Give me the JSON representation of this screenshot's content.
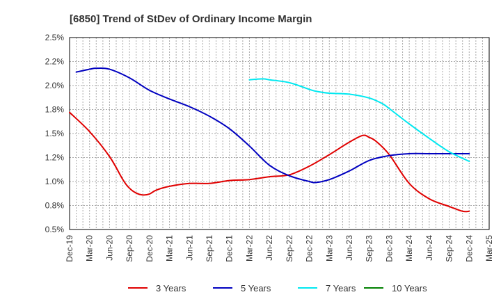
{
  "chart_data": {
    "type": "line",
    "title": "[6850]  Trend of StDev of Ordinary Income Margin",
    "xlabel": "",
    "ylabel": "",
    "ylim": [
      0.5,
      2.5
    ],
    "grid": true,
    "legend_position": "bottom",
    "y_ticks": [
      "0.5%",
      "0.8%",
      "1.0%",
      "1.2%",
      "1.5%",
      "1.8%",
      "2.0%",
      "2.2%",
      "2.5%"
    ],
    "x_ticks": [
      "Dec-19",
      "Mar-20",
      "Jun-20",
      "Sep-20",
      "Dec-20",
      "Mar-21",
      "Jun-21",
      "Sep-21",
      "Dec-21",
      "Mar-22",
      "Jun-22",
      "Sep-22",
      "Dec-22",
      "Mar-23",
      "Jun-23",
      "Sep-23",
      "Dec-23",
      "Mar-24",
      "Jun-24",
      "Sep-24",
      "Dec-24",
      "Mar-25"
    ],
    "series": [
      {
        "name": "3 Years",
        "color": "#e00000",
        "points": [
          [
            "Dec-19",
            1.72
          ],
          [
            "Mar-20",
            1.52
          ],
          [
            "Jun-20",
            1.26
          ],
          [
            "Aug-20",
            1.02
          ],
          [
            "Sep-20",
            0.93
          ],
          [
            "Oct-20",
            0.88
          ],
          [
            "Nov-20",
            0.86
          ],
          [
            "Dec-20",
            0.87
          ],
          [
            "Jan-21",
            0.91
          ],
          [
            "Mar-21",
            0.95
          ],
          [
            "Jun-21",
            0.98
          ],
          [
            "Sep-21",
            0.98
          ],
          [
            "Dec-21",
            1.01
          ],
          [
            "Mar-22",
            1.02
          ],
          [
            "Jun-22",
            1.05
          ],
          [
            "Sep-22",
            1.07
          ],
          [
            "Dec-22",
            1.16
          ],
          [
            "Mar-23",
            1.28
          ],
          [
            "Jun-23",
            1.41
          ],
          [
            "Aug-23",
            1.48
          ],
          [
            "Sep-23",
            1.46
          ],
          [
            "Oct-23",
            1.42
          ],
          [
            "Dec-23",
            1.28
          ],
          [
            "Mar-24",
            0.98
          ],
          [
            "Jun-24",
            0.82
          ],
          [
            "Sep-24",
            0.74
          ],
          [
            "Nov-24",
            0.69
          ],
          [
            "Dec-24",
            0.69
          ]
        ]
      },
      {
        "name": "5 Years",
        "color": "#0000c0",
        "points": [
          [
            "Jan-20",
            2.14
          ],
          [
            "Mar-20",
            2.17
          ],
          [
            "Apr-20",
            2.18
          ],
          [
            "Jun-20",
            2.17
          ],
          [
            "Sep-20",
            2.08
          ],
          [
            "Dec-20",
            1.95
          ],
          [
            "Mar-21",
            1.86
          ],
          [
            "Jun-21",
            1.78
          ],
          [
            "Sep-21",
            1.68
          ],
          [
            "Dec-21",
            1.55
          ],
          [
            "Mar-22",
            1.37
          ],
          [
            "Jun-22",
            1.17
          ],
          [
            "Sep-22",
            1.06
          ],
          [
            "Dec-22",
            1.0
          ],
          [
            "Jan-23",
            0.99
          ],
          [
            "Mar-23",
            1.02
          ],
          [
            "Jun-23",
            1.11
          ],
          [
            "Sep-23",
            1.22
          ],
          [
            "Dec-23",
            1.27
          ],
          [
            "Mar-24",
            1.29
          ],
          [
            "Jun-24",
            1.29
          ],
          [
            "Sep-24",
            1.29
          ],
          [
            "Dec-24",
            1.29
          ]
        ]
      },
      {
        "name": "7 Years",
        "color": "#00e8f0",
        "points": [
          [
            "Mar-22",
            2.06
          ],
          [
            "May-22",
            2.07
          ],
          [
            "Jun-22",
            2.06
          ],
          [
            "Sep-22",
            2.03
          ],
          [
            "Dec-22",
            1.96
          ],
          [
            "Jan-23",
            1.94
          ],
          [
            "Mar-23",
            1.92
          ],
          [
            "Jun-23",
            1.91
          ],
          [
            "Sep-23",
            1.87
          ],
          [
            "Nov-23",
            1.81
          ],
          [
            "Dec-23",
            1.76
          ],
          [
            "Mar-24",
            1.6
          ],
          [
            "Jun-24",
            1.45
          ],
          [
            "Sep-24",
            1.31
          ],
          [
            "Dec-24",
            1.21
          ]
        ]
      },
      {
        "name": "10 Years",
        "color": "#008000",
        "points": []
      }
    ]
  }
}
